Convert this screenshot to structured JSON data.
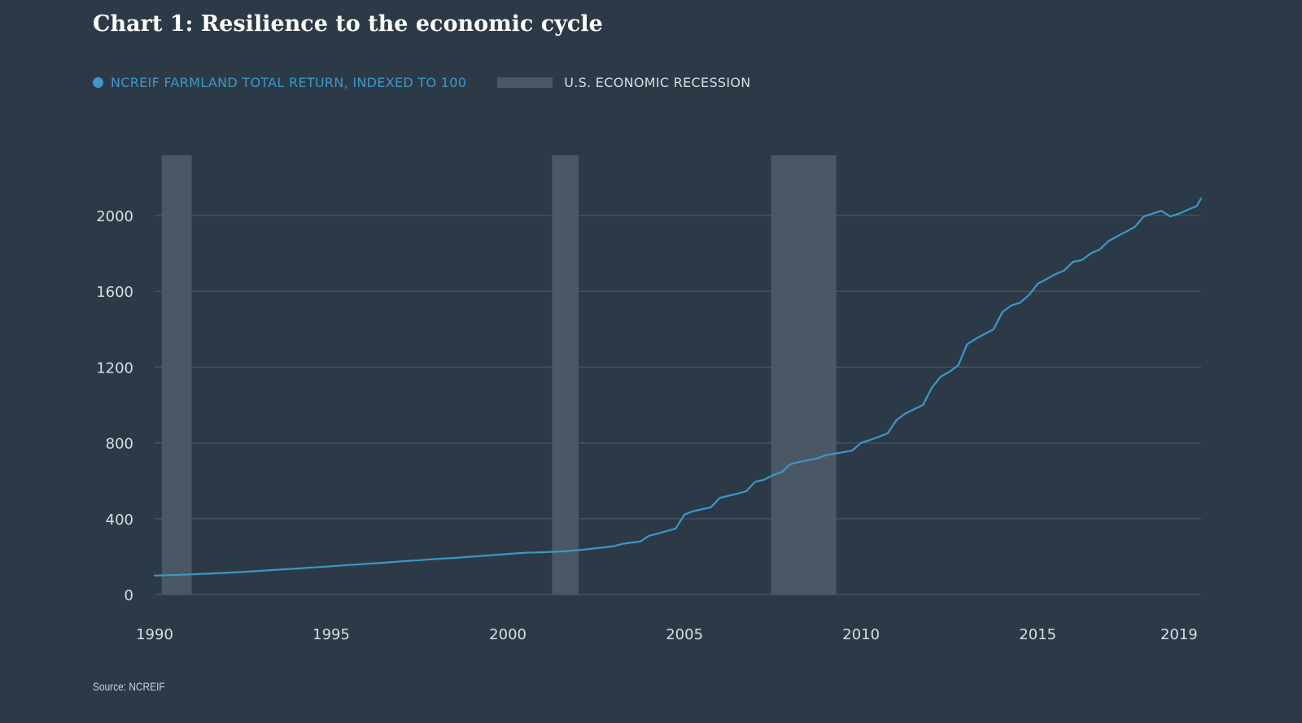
{
  "chart_data": {
    "type": "line",
    "title": "Chart 1: Resilience to the economic cycle",
    "legend": {
      "placement": "top-left",
      "series_label": "NCREIF FARMLAND TOTAL RETURN, INDEXED TO 100",
      "recession_label": "U.S. ECONOMIC RECESSION"
    },
    "xlabel": "",
    "ylabel": "",
    "xlim": [
      1990,
      2019.625
    ],
    "ylim": [
      0,
      2300
    ],
    "yticks": [
      0,
      400,
      800,
      1200,
      1600,
      2000
    ],
    "xticks": [
      1990,
      1995,
      2000,
      2005,
      2010,
      2015,
      2019
    ],
    "grid": true,
    "source": "Source: NCREIF",
    "colors": {
      "series": "#3d97c7",
      "recession": "#4a5765",
      "grid": "#4a5866",
      "background": "#2c3a48"
    },
    "recessions": [
      {
        "start": 1990.2,
        "end": 1991.05
      },
      {
        "start": 2001.25,
        "end": 2002.0
      },
      {
        "start": 2007.45,
        "end": 2009.3
      }
    ],
    "series": [
      {
        "name": "NCREIF FARMLAND TOTAL RETURN, INDEXED TO 100",
        "x": [
          1990,
          1990.5,
          1991,
          1991.5,
          1992,
          1992.5,
          1993,
          1993.5,
          1994,
          1994.5,
          1995,
          1995.5,
          1996,
          1996.5,
          1997,
          1997.5,
          1998,
          1998.5,
          1999,
          1999.5,
          2000,
          2000.5,
          2001,
          2001.5,
          2002,
          2002.5,
          2003,
          2003.25,
          2003.75,
          2004,
          2004.25,
          2004.75,
          2005,
          2005.25,
          2005.75,
          2006,
          2006.5,
          2006.75,
          2007,
          2007.25,
          2007.5,
          2007.75,
          2008,
          2008.25,
          2008.75,
          2009,
          2009.25,
          2009.75,
          2010,
          2010.25,
          2010.75,
          2011,
          2011.25,
          2011.75,
          2012,
          2012.25,
          2012.5,
          2012.75,
          2013,
          2013.25,
          2013.75,
          2014,
          2014.25,
          2014.5,
          2014.75,
          2015,
          2015.25,
          2015.5,
          2015.75,
          2016,
          2016.25,
          2016.5,
          2016.75,
          2017,
          2017.25,
          2017.5,
          2017.75,
          2018,
          2018.25,
          2018.5,
          2018.75,
          2019,
          2019.25,
          2019.5,
          2019.625
        ],
        "values": [
          100,
          102,
          106,
          110,
          114,
          119,
          125,
          131,
          137,
          143,
          149,
          156,
          162,
          168,
          175,
          181,
          188,
          193,
          200,
          207,
          214,
          220,
          223,
          227,
          234,
          244,
          255,
          268,
          280,
          310,
          322,
          348,
          422,
          440,
          460,
          510,
          532,
          545,
          595,
          605,
          630,
          645,
          688,
          700,
          718,
          735,
          743,
          760,
          800,
          815,
          850,
          920,
          955,
          1000,
          1090,
          1150,
          1175,
          1210,
          1320,
          1350,
          1400,
          1490,
          1525,
          1540,
          1580,
          1640,
          1665,
          1690,
          1710,
          1755,
          1765,
          1800,
          1820,
          1865,
          1890,
          1915,
          1940,
          1995,
          2010,
          2025,
          1995,
          2010,
          2030,
          2050,
          2090
        ]
      }
    ]
  }
}
